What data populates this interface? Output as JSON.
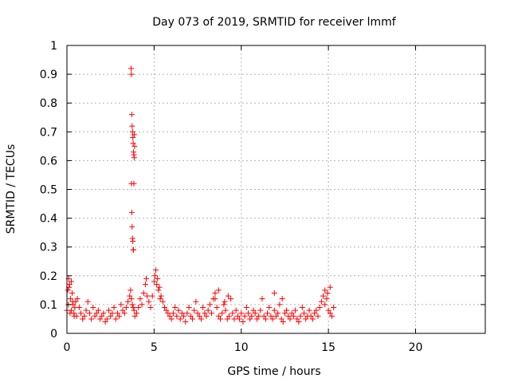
{
  "chart_data": {
    "type": "scatter",
    "title": "Day 073 of 2019, SRMTID for receiver lmmf",
    "xlabel": "GPS time / hours",
    "ylabel": "SRMTID / TECUs",
    "xlim": [
      0,
      24
    ],
    "ylim": [
      0,
      1
    ],
    "grid": true,
    "xticks": [
      0,
      5,
      10,
      15,
      20
    ],
    "xtick_labels": [
      "0",
      "5",
      "10",
      "15",
      "20"
    ],
    "yticks": [
      0,
      0.1,
      0.2,
      0.3,
      0.4,
      0.5,
      0.6,
      0.7,
      0.8,
      0.9,
      1
    ],
    "ytick_labels": [
      "0",
      "0.1",
      "0.2",
      "0.3",
      "0.4",
      "0.5",
      "0.6",
      "0.7",
      "0.8",
      "0.9",
      "1"
    ],
    "marker": "plus",
    "series": [
      {
        "name": "SRMTID",
        "color": "#ff0000",
        "x": [
          0.0,
          0.05,
          0.1,
          0.15,
          0.2,
          0.25,
          0.3,
          0.35,
          0.4,
          0.45,
          0.5,
          0.55,
          0.6,
          0.7,
          0.8,
          0.9,
          1.0,
          1.1,
          1.2,
          1.3,
          1.4,
          1.5,
          1.6,
          1.7,
          1.8,
          1.9,
          2.0,
          2.1,
          2.2,
          2.3,
          2.4,
          2.5,
          2.6,
          2.7,
          2.8,
          2.9,
          3.0,
          3.1,
          3.2,
          3.3,
          3.4,
          3.5,
          3.6,
          3.65,
          3.7,
          3.75,
          3.8,
          3.85,
          3.9,
          4.0,
          4.1,
          4.2,
          4.3,
          4.4,
          4.5,
          4.6,
          4.7,
          4.8,
          4.9,
          5.0,
          5.1,
          5.2,
          5.3,
          5.4,
          5.5,
          5.6,
          5.7,
          5.8,
          5.9,
          6.0,
          6.1,
          6.2,
          6.3,
          6.4,
          6.5,
          6.6,
          6.7,
          6.8,
          6.9,
          7.0,
          7.1,
          7.2,
          7.3,
          7.4,
          7.5,
          7.6,
          7.7,
          7.8,
          7.9,
          8.0,
          8.1,
          8.2,
          8.3,
          8.4,
          8.5,
          8.6,
          8.7,
          8.8,
          8.9,
          9.0,
          9.1,
          9.2,
          9.3,
          9.4,
          9.5,
          9.6,
          9.7,
          9.8,
          9.9,
          10.0,
          10.1,
          10.2,
          10.3,
          10.4,
          10.5,
          10.6,
          10.7,
          10.8,
          10.9,
          11.0,
          11.1,
          11.2,
          11.3,
          11.4,
          11.5,
          11.6,
          11.7,
          11.8,
          11.9,
          12.0,
          12.1,
          12.2,
          12.3,
          12.4,
          12.5,
          12.6,
          12.7,
          12.8,
          12.9,
          13.0,
          13.1,
          13.2,
          13.3,
          13.4,
          13.5,
          13.6,
          13.7,
          13.8,
          13.9,
          14.0,
          14.1,
          14.2,
          14.3,
          14.4,
          14.5,
          14.6,
          14.7,
          14.8,
          14.9,
          15.0,
          15.1,
          15.2,
          15.3,
          3.68,
          3.7,
          3.72,
          3.74,
          3.76,
          3.78,
          3.8,
          3.82,
          3.84,
          3.86,
          3.7,
          3.72,
          3.74,
          3.76,
          3.78,
          3.8,
          3.82,
          3.84,
          3.86,
          3.88,
          0.08,
          0.12,
          0.18,
          0.25,
          0.33,
          0.42,
          5.05,
          5.15,
          5.25,
          5.35,
          8.5,
          8.7,
          9.05,
          9.25,
          11.9,
          12.35,
          14.8,
          14.95,
          15.1,
          4.55
        ],
        "y": [
          0.08,
          0.15,
          0.19,
          0.17,
          0.12,
          0.18,
          0.14,
          0.1,
          0.07,
          0.09,
          0.11,
          0.06,
          0.12,
          0.09,
          0.07,
          0.05,
          0.06,
          0.08,
          0.11,
          0.07,
          0.05,
          0.09,
          0.06,
          0.07,
          0.08,
          0.05,
          0.06,
          0.07,
          0.04,
          0.05,
          0.08,
          0.06,
          0.07,
          0.09,
          0.05,
          0.07,
          0.06,
          0.1,
          0.08,
          0.07,
          0.09,
          0.11,
          0.13,
          0.15,
          0.12,
          0.1,
          0.09,
          0.08,
          0.06,
          0.07,
          0.09,
          0.12,
          0.1,
          0.14,
          0.17,
          0.13,
          0.11,
          0.09,
          0.13,
          0.18,
          0.22,
          0.19,
          0.16,
          0.13,
          0.11,
          0.09,
          0.08,
          0.07,
          0.06,
          0.05,
          0.07,
          0.09,
          0.06,
          0.08,
          0.05,
          0.07,
          0.06,
          0.04,
          0.07,
          0.09,
          0.06,
          0.05,
          0.08,
          0.11,
          0.07,
          0.06,
          0.05,
          0.09,
          0.07,
          0.06,
          0.08,
          0.1,
          0.07,
          0.12,
          0.14,
          0.09,
          0.06,
          0.05,
          0.07,
          0.1,
          0.08,
          0.05,
          0.06,
          0.12,
          0.07,
          0.05,
          0.08,
          0.06,
          0.05,
          0.07,
          0.04,
          0.06,
          0.09,
          0.07,
          0.05,
          0.06,
          0.08,
          0.07,
          0.05,
          0.06,
          0.08,
          0.12,
          0.06,
          0.05,
          0.07,
          0.09,
          0.06,
          0.05,
          0.08,
          0.06,
          0.07,
          0.1,
          0.05,
          0.04,
          0.07,
          0.08,
          0.06,
          0.05,
          0.07,
          0.06,
          0.08,
          0.05,
          0.04,
          0.06,
          0.09,
          0.07,
          0.05,
          0.06,
          0.08,
          0.06,
          0.05,
          0.07,
          0.08,
          0.06,
          0.09,
          0.11,
          0.13,
          0.1,
          0.12,
          0.08,
          0.07,
          0.06,
          0.09,
          0.92,
          0.9,
          0.76,
          0.72,
          0.7,
          0.68,
          0.66,
          0.63,
          0.62,
          0.61,
          0.52,
          0.42,
          0.37,
          0.33,
          0.32,
          0.29,
          0.29,
          0.52,
          0.69,
          0.65,
          0.1,
          0.16,
          0.07,
          0.08,
          0.11,
          0.06,
          0.2,
          0.17,
          0.15,
          0.12,
          0.12,
          0.15,
          0.11,
          0.13,
          0.14,
          0.12,
          0.15,
          0.14,
          0.16,
          0.19
        ]
      }
    ]
  }
}
